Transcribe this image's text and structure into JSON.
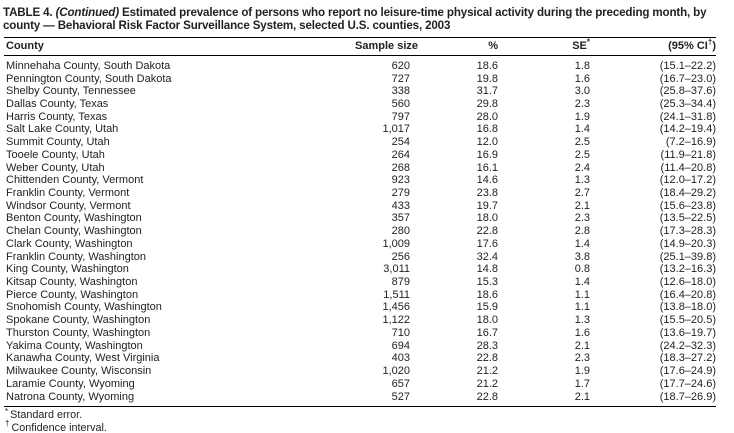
{
  "title": {
    "prefix": "TABLE 4.",
    "continued": "(Continued)",
    "text": "Estimated prevalence of persons who report no leisure-time physical activity during the preceding month, by county — Behavioral Risk Factor Surveillance System, selected U.S. counties, 2003"
  },
  "table": {
    "header": {
      "county": "County",
      "sample_size": "Sample size",
      "percent": "%",
      "se_base": "SE",
      "se_sup": "*",
      "ci_pre": "(95% CI",
      "ci_sup": "†",
      "ci_post": ")"
    },
    "rows": [
      {
        "county": "Minnehaha County, South Dakota",
        "sample": "620",
        "pct": "18.6",
        "se": "1.8",
        "ci": "(15.1–22.2)"
      },
      {
        "county": "Pennington County, South Dakota",
        "sample": "727",
        "pct": "19.8",
        "se": "1.6",
        "ci": "(16.7–23.0)"
      },
      {
        "county": "Shelby County, Tennessee",
        "sample": "338",
        "pct": "31.7",
        "se": "3.0",
        "ci": "(25.8–37.6)"
      },
      {
        "county": "Dallas County, Texas",
        "sample": "560",
        "pct": "29.8",
        "se": "2.3",
        "ci": "(25.3–34.4)"
      },
      {
        "county": "Harris County, Texas",
        "sample": "797",
        "pct": "28.0",
        "se": "1.9",
        "ci": "(24.1–31.8)"
      },
      {
        "county": "Salt Lake County, Utah",
        "sample": "1,017",
        "pct": "16.8",
        "se": "1.4",
        "ci": "(14.2–19.4)"
      },
      {
        "county": "Summit County, Utah",
        "sample": "254",
        "pct": "12.0",
        "se": "2.5",
        "ci": "(7.2–16.9)"
      },
      {
        "county": "Tooele County, Utah",
        "sample": "264",
        "pct": "16.9",
        "se": "2.5",
        "ci": "(11.9–21.8)"
      },
      {
        "county": "Weber County, Utah",
        "sample": "268",
        "pct": "16.1",
        "se": "2.4",
        "ci": "(11.4–20.8)"
      },
      {
        "county": "Chittenden County, Vermont",
        "sample": "923",
        "pct": "14.6",
        "se": "1.3",
        "ci": "(12.0–17.2)"
      },
      {
        "county": "Franklin County, Vermont",
        "sample": "279",
        "pct": "23.8",
        "se": "2.7",
        "ci": "(18.4–29.2)"
      },
      {
        "county": "Windsor County, Vermont",
        "sample": "433",
        "pct": "19.7",
        "se": "2.1",
        "ci": "(15.6–23.8)"
      },
      {
        "county": "Benton County, Washington",
        "sample": "357",
        "pct": "18.0",
        "se": "2.3",
        "ci": "(13.5–22.5)"
      },
      {
        "county": "Chelan County, Washington",
        "sample": "280",
        "pct": "22.8",
        "se": "2.8",
        "ci": "(17.3–28.3)"
      },
      {
        "county": "Clark County, Washington",
        "sample": "1,009",
        "pct": "17.6",
        "se": "1.4",
        "ci": "(14.9–20.3)"
      },
      {
        "county": "Franklin County, Washington",
        "sample": "256",
        "pct": "32.4",
        "se": "3.8",
        "ci": "(25.1–39.8)"
      },
      {
        "county": "King County, Washington",
        "sample": "3,011",
        "pct": "14.8",
        "se": "0.8",
        "ci": "(13.2–16.3)"
      },
      {
        "county": "Kitsap County, Washington",
        "sample": "879",
        "pct": "15.3",
        "se": "1.4",
        "ci": "(12.6–18.0)"
      },
      {
        "county": "Pierce County, Washington",
        "sample": "1,511",
        "pct": "18.6",
        "se": "1.1",
        "ci": "(16.4–20.8)"
      },
      {
        "county": "Snohomish County, Washington",
        "sample": "1,456",
        "pct": "15.9",
        "se": "1.1",
        "ci": "(13.8–18.0)"
      },
      {
        "county": "Spokane County, Washington",
        "sample": "1,122",
        "pct": "18.0",
        "se": "1.3",
        "ci": "(15.5–20.5)"
      },
      {
        "county": "Thurston County, Washington",
        "sample": "710",
        "pct": "16.7",
        "se": "1.6",
        "ci": "(13.6–19.7)"
      },
      {
        "county": "Yakima County, Washington",
        "sample": "694",
        "pct": "28.3",
        "se": "2.1",
        "ci": "(24.2–32.3)"
      },
      {
        "county": "Kanawha County, West Virginia",
        "sample": "403",
        "pct": "22.8",
        "se": "2.3",
        "ci": "(18.3–27.2)"
      },
      {
        "county": "Milwaukee County, Wisconsin",
        "sample": "1,020",
        "pct": "21.2",
        "se": "1.9",
        "ci": "(17.6–24.9)"
      },
      {
        "county": "Laramie County, Wyoming",
        "sample": "657",
        "pct": "21.2",
        "se": "1.7",
        "ci": "(17.7–24.6)"
      },
      {
        "county": "Natrona County, Wyoming",
        "sample": "527",
        "pct": "22.8",
        "se": "2.1",
        "ci": "(18.7–26.9)"
      }
    ]
  },
  "footnotes": [
    {
      "marker": "*",
      "text": "Standard error."
    },
    {
      "marker": "†",
      "text": "Confidence interval."
    }
  ]
}
